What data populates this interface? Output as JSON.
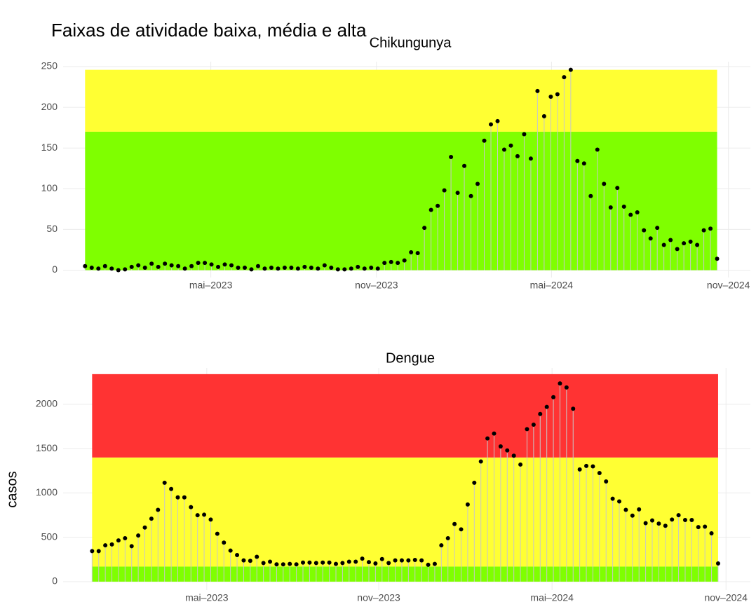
{
  "title": "Faixas de atividade baixa, média e alta",
  "chart_data": [
    {
      "type": "lollipop",
      "title": "Chikungunya",
      "values": [
        5,
        3,
        2,
        5,
        2,
        0,
        1,
        4,
        6,
        3,
        8,
        4,
        8,
        6,
        5,
        2,
        5,
        9,
        9,
        7,
        4,
        7,
        6,
        3,
        3,
        1,
        5,
        2,
        3,
        2,
        3,
        3,
        2,
        4,
        3,
        2,
        6,
        3,
        1,
        1,
        2,
        4,
        2,
        3,
        2,
        9,
        10,
        9,
        12,
        22,
        21,
        52,
        74,
        79,
        98,
        139,
        95,
        128,
        91,
        106,
        159,
        179,
        183,
        148,
        153,
        140,
        167,
        137,
        220,
        189,
        213,
        216,
        237,
        246,
        134,
        131,
        91,
        148,
        106,
        77,
        101,
        78,
        68,
        71,
        49,
        39,
        52,
        31,
        37,
        26,
        33,
        35,
        31,
        49,
        51,
        14
      ],
      "bands": [
        {
          "from": 0,
          "to": 170,
          "color": "#7fff00"
        },
        {
          "from": 170,
          "to": 246,
          "color": "#ffff33"
        }
      ],
      "xlim": [
        -3.3,
        100
      ],
      "ylim": [
        -9,
        256
      ],
      "xticks": [
        {
          "value": 18.9,
          "label": "mai–2023"
        },
        {
          "value": 43.8,
          "label": "nov–2023"
        },
        {
          "value": 70.1,
          "label": "mai–2024"
        },
        {
          "value": 96.7,
          "label": "nov–2024"
        }
      ],
      "yticks": [
        0,
        50,
        100,
        150,
        200,
        250
      ],
      "grid": true,
      "color": "#000000",
      "stem_color": "#c8c8c8"
    },
    {
      "type": "lollipop",
      "title": "Dengue",
      "ylabel": "casos",
      "values": [
        345,
        345,
        410,
        420,
        465,
        490,
        400,
        520,
        610,
        710,
        810,
        1115,
        1045,
        950,
        950,
        840,
        750,
        755,
        700,
        540,
        440,
        350,
        300,
        240,
        235,
        280,
        210,
        225,
        195,
        195,
        200,
        195,
        215,
        215,
        210,
        215,
        215,
        200,
        210,
        225,
        225,
        260,
        220,
        205,
        255,
        210,
        240,
        240,
        240,
        245,
        240,
        190,
        200,
        410,
        490,
        650,
        590,
        870,
        1115,
        1355,
        1615,
        1670,
        1525,
        1480,
        1420,
        1320,
        1720,
        1770,
        1890,
        1970,
        2080,
        2235,
        2190,
        1950,
        1265,
        1305,
        1300,
        1225,
        1130,
        935,
        905,
        810,
        745,
        815,
        660,
        690,
        655,
        630,
        700,
        750,
        695,
        695,
        615,
        620,
        545,
        205
      ],
      "bands": [
        {
          "from": 0,
          "to": 170,
          "color": "#7fff00"
        },
        {
          "from": 170,
          "to": 1400,
          "color": "#ffff33"
        },
        {
          "from": 1400,
          "to": 2340,
          "color": "#ff3333"
        }
      ],
      "xlim": [
        -4.4,
        99.9
      ],
      "ylim": [
        -95,
        2410
      ],
      "xticks": [
        {
          "value": 17.4,
          "label": "mai–2023"
        },
        {
          "value": 43.5,
          "label": "nov–2023"
        },
        {
          "value": 69.8,
          "label": "mai–2024"
        },
        {
          "value": 96.2,
          "label": "nov–2024"
        }
      ],
      "yticks": [
        0,
        500,
        1000,
        1500,
        2000
      ],
      "grid": true,
      "color": "#000000",
      "stem_color": "#c8c8c8"
    }
  ]
}
